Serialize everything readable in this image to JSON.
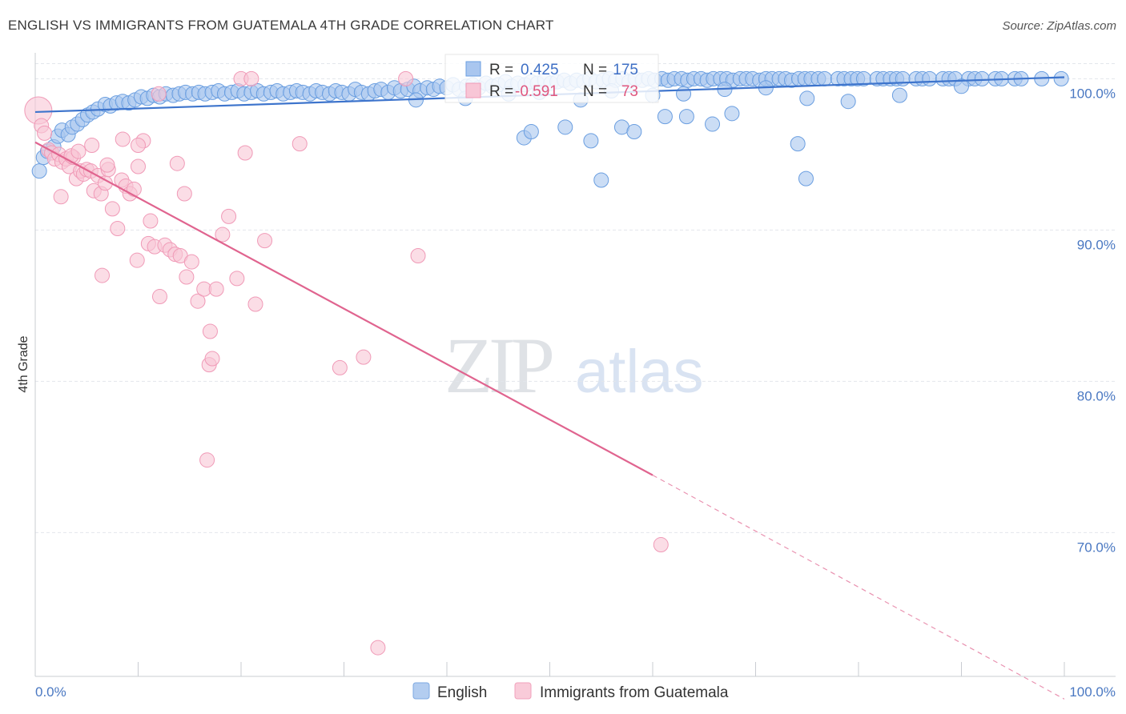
{
  "chart_data": {
    "type": "scatter",
    "title": "ENGLISH VS IMMIGRANTS FROM GUATEMALA 4TH GRADE CORRELATION CHART",
    "source": "Source: ZipAtlas.com",
    "ylabel": "4th Grade",
    "xlim": [
      0,
      100
    ],
    "ylim": [
      60.5,
      101.5
    ],
    "y_ticks": [
      {
        "value": 100,
        "label": "100.0%"
      },
      {
        "value": 90,
        "label": "90.0%"
      },
      {
        "value": 80,
        "label": "80.0%"
      },
      {
        "value": 70,
        "label": "70.0%"
      }
    ],
    "x_tick_labels": {
      "left": "0.0%",
      "right": "100.0%"
    },
    "watermark": {
      "zip": "ZIP",
      "atlas": "atlas"
    },
    "colors": {
      "english": "#6a9ee0",
      "english_line": "#3d74cc",
      "guatemala": "#f4a6bf",
      "guatemala_line": "#e0648f",
      "grid": "#e3e6ec",
      "tick_text": "#4a78c2"
    },
    "series": [
      {
        "name": "English",
        "r_label": "R =",
        "r_value": "0.425",
        "n_label": "N =",
        "n_value": "175",
        "trend": {
          "x0": 0,
          "y0": 97.8,
          "x1": 100,
          "y1": 100.1
        },
        "points": [
          [
            0.4,
            93.9
          ],
          [
            0.8,
            94.8
          ],
          [
            1.2,
            95.2
          ],
          [
            1.8,
            95.5
          ],
          [
            2.2,
            96.2
          ],
          [
            2.6,
            96.6
          ],
          [
            3.2,
            96.3
          ],
          [
            3.6,
            96.8
          ],
          [
            4.1,
            97.0
          ],
          [
            4.6,
            97.3
          ],
          [
            5.1,
            97.6
          ],
          [
            5.6,
            97.8
          ],
          [
            6.1,
            98.0
          ],
          [
            6.8,
            98.3
          ],
          [
            7.3,
            98.2
          ],
          [
            7.9,
            98.4
          ],
          [
            8.5,
            98.5
          ],
          [
            9.1,
            98.4
          ],
          [
            9.7,
            98.6
          ],
          [
            10.3,
            98.8
          ],
          [
            10.9,
            98.7
          ],
          [
            11.5,
            98.9
          ],
          [
            12.1,
            98.8
          ],
          [
            12.7,
            99.0
          ],
          [
            13.4,
            98.9
          ],
          [
            14.0,
            99.0
          ],
          [
            14.6,
            99.1
          ],
          [
            15.3,
            99.0
          ],
          [
            15.9,
            99.1
          ],
          [
            16.5,
            99.0
          ],
          [
            17.2,
            99.1
          ],
          [
            17.8,
            99.2
          ],
          [
            18.4,
            99.0
          ],
          [
            19.1,
            99.1
          ],
          [
            19.7,
            99.2
          ],
          [
            20.3,
            99.0
          ],
          [
            21.0,
            99.1
          ],
          [
            21.6,
            99.2
          ],
          [
            22.2,
            99.0
          ],
          [
            22.9,
            99.1
          ],
          [
            23.5,
            99.2
          ],
          [
            24.1,
            99.0
          ],
          [
            24.8,
            99.1
          ],
          [
            25.4,
            99.2
          ],
          [
            26.0,
            99.1
          ],
          [
            26.7,
            99.0
          ],
          [
            27.3,
            99.2
          ],
          [
            27.9,
            99.1
          ],
          [
            28.6,
            99.0
          ],
          [
            29.2,
            99.2
          ],
          [
            29.8,
            99.1
          ],
          [
            30.5,
            99.0
          ],
          [
            31.1,
            99.3
          ],
          [
            31.7,
            99.1
          ],
          [
            32.4,
            99.0
          ],
          [
            33.0,
            99.2
          ],
          [
            33.6,
            99.3
          ],
          [
            34.3,
            99.1
          ],
          [
            34.9,
            99.4
          ],
          [
            35.5,
            99.2
          ],
          [
            36.2,
            99.3
          ],
          [
            36.8,
            99.5
          ],
          [
            37.4,
            99.2
          ],
          [
            38.1,
            99.4
          ],
          [
            38.7,
            99.3
          ],
          [
            39.3,
            99.5
          ],
          [
            40.0,
            99.4
          ],
          [
            40.6,
            99.6
          ],
          [
            41.2,
            99.3
          ],
          [
            41.9,
            99.5
          ],
          [
            42.5,
            99.6
          ],
          [
            43.1,
            99.4
          ],
          [
            43.8,
            99.7
          ],
          [
            44.4,
            99.5
          ],
          [
            45.0,
            99.6
          ],
          [
            45.7,
            99.8
          ],
          [
            46.3,
            99.5
          ],
          [
            46.9,
            99.7
          ],
          [
            47.6,
            99.6
          ],
          [
            48.2,
            99.8
          ],
          [
            48.8,
            99.7
          ],
          [
            49.5,
            99.9
          ],
          [
            50.1,
            99.7
          ],
          [
            50.7,
            99.8
          ],
          [
            51.4,
            99.9
          ],
          [
            52.0,
            99.7
          ],
          [
            52.6,
            99.9
          ],
          [
            53.3,
            99.8
          ],
          [
            53.9,
            100.0
          ],
          [
            54.5,
            99.8
          ],
          [
            55.2,
            99.9
          ],
          [
            55.8,
            100.0
          ],
          [
            56.4,
            99.9
          ],
          [
            57.1,
            100.0
          ],
          [
            57.7,
            99.8
          ],
          [
            58.3,
            100.0
          ],
          [
            59.0,
            99.9
          ],
          [
            59.6,
            100.0
          ],
          [
            60.2,
            99.9
          ],
          [
            60.9,
            100.0
          ],
          [
            61.5,
            99.9
          ],
          [
            62.1,
            100.0
          ],
          [
            62.8,
            100.0
          ],
          [
            63.4,
            99.9
          ],
          [
            64.0,
            100.0
          ],
          [
            64.7,
            100.0
          ],
          [
            65.3,
            99.9
          ],
          [
            65.9,
            100.0
          ],
          [
            66.6,
            100.0
          ],
          [
            67.2,
            100.0
          ],
          [
            67.8,
            99.9
          ],
          [
            68.5,
            100.0
          ],
          [
            69.1,
            100.0
          ],
          [
            69.7,
            100.0
          ],
          [
            70.4,
            99.9
          ],
          [
            71.0,
            100.0
          ],
          [
            71.6,
            100.0
          ],
          [
            72.3,
            100.0
          ],
          [
            72.9,
            100.0
          ],
          [
            73.5,
            99.9
          ],
          [
            74.2,
            100.0
          ],
          [
            74.8,
            100.0
          ],
          [
            75.4,
            100.0
          ],
          [
            76.1,
            100.0
          ],
          [
            76.7,
            100.0
          ],
          [
            78.0,
            100.0
          ],
          [
            78.6,
            100.0
          ],
          [
            79.3,
            100.0
          ],
          [
            79.9,
            100.0
          ],
          [
            80.5,
            100.0
          ],
          [
            81.8,
            100.0
          ],
          [
            82.4,
            100.0
          ],
          [
            83.1,
            100.0
          ],
          [
            83.7,
            100.0
          ],
          [
            84.3,
            100.0
          ],
          [
            85.6,
            100.0
          ],
          [
            86.2,
            100.0
          ],
          [
            86.9,
            100.0
          ],
          [
            88.2,
            100.0
          ],
          [
            88.8,
            100.0
          ],
          [
            89.4,
            100.0
          ],
          [
            90.7,
            100.0
          ],
          [
            91.3,
            100.0
          ],
          [
            92.0,
            100.0
          ],
          [
            93.3,
            100.0
          ],
          [
            93.9,
            100.0
          ],
          [
            95.2,
            100.0
          ],
          [
            95.8,
            100.0
          ],
          [
            97.8,
            100.0
          ],
          [
            99.7,
            100.0
          ],
          [
            46.0,
            99.0
          ],
          [
            49.0,
            99.1
          ],
          [
            53.0,
            98.6
          ],
          [
            56.0,
            99.2
          ],
          [
            60.0,
            98.9
          ],
          [
            63.0,
            99.0
          ],
          [
            67.0,
            99.3
          ],
          [
            71.0,
            99.4
          ],
          [
            75.0,
            98.7
          ],
          [
            79.0,
            98.5
          ],
          [
            84.0,
            98.9
          ],
          [
            90.0,
            99.5
          ],
          [
            47.5,
            96.1
          ],
          [
            48.2,
            96.5
          ],
          [
            51.5,
            96.8
          ],
          [
            54.0,
            95.9
          ],
          [
            57.0,
            96.8
          ],
          [
            58.2,
            96.5
          ],
          [
            61.2,
            97.5
          ],
          [
            63.3,
            97.5
          ],
          [
            65.8,
            97.0
          ],
          [
            67.7,
            97.7
          ],
          [
            55.0,
            93.3
          ],
          [
            74.1,
            95.7
          ],
          [
            74.9,
            93.4
          ],
          [
            37.0,
            98.6
          ],
          [
            41.8,
            98.7
          ]
        ]
      },
      {
        "name": "Immigrants from Guatemala",
        "r_label": "R =",
        "r_value": "-0.591",
        "n_label": "N =",
        "n_value": "73",
        "trend": {
          "x0": 0,
          "y0": 95.8,
          "x1": 60,
          "y1": 73.8
        },
        "trend_dashed": {
          "x0": 60,
          "y0": 73.8,
          "x1": 100,
          "y1": 59.0
        },
        "points": [
          [
            0.3,
            97.9
          ],
          [
            0.6,
            96.9
          ],
          [
            0.9,
            96.4
          ],
          [
            1.3,
            95.3
          ],
          [
            1.6,
            95.1
          ],
          [
            1.9,
            94.7
          ],
          [
            2.3,
            95.0
          ],
          [
            2.6,
            94.5
          ],
          [
            3.0,
            94.7
          ],
          [
            3.3,
            94.2
          ],
          [
            3.7,
            94.8
          ],
          [
            4.0,
            93.4
          ],
          [
            4.4,
            93.9
          ],
          [
            4.7,
            93.7
          ],
          [
            5.0,
            94.0
          ],
          [
            5.4,
            93.9
          ],
          [
            5.7,
            92.6
          ],
          [
            6.1,
            93.6
          ],
          [
            6.4,
            92.4
          ],
          [
            6.8,
            93.1
          ],
          [
            7.1,
            94.0
          ],
          [
            7.5,
            91.4
          ],
          [
            8.0,
            90.1
          ],
          [
            8.4,
            93.3
          ],
          [
            8.8,
            92.9
          ],
          [
            9.2,
            92.4
          ],
          [
            9.6,
            92.7
          ],
          [
            10.0,
            94.2
          ],
          [
            10.5,
            95.9
          ],
          [
            11.0,
            89.1
          ],
          [
            11.6,
            88.9
          ],
          [
            12.1,
            85.6
          ],
          [
            12.6,
            89.0
          ],
          [
            13.1,
            88.7
          ],
          [
            13.6,
            88.4
          ],
          [
            14.1,
            88.3
          ],
          [
            14.7,
            86.9
          ],
          [
            15.2,
            87.9
          ],
          [
            15.8,
            85.3
          ],
          [
            16.4,
            86.1
          ],
          [
            17.0,
            83.3
          ],
          [
            17.6,
            86.1
          ],
          [
            18.2,
            89.7
          ],
          [
            18.8,
            90.9
          ],
          [
            19.6,
            86.8
          ],
          [
            20.4,
            95.1
          ],
          [
            21.4,
            85.1
          ],
          [
            22.3,
            89.3
          ],
          [
            2.5,
            92.2
          ],
          [
            6.5,
            87.0
          ],
          [
            9.9,
            88.0
          ],
          [
            11.2,
            90.6
          ],
          [
            14.5,
            92.4
          ],
          [
            16.9,
            81.1
          ],
          [
            25.7,
            95.7
          ],
          [
            29.6,
            80.9
          ],
          [
            31.9,
            81.6
          ],
          [
            37.2,
            88.3
          ],
          [
            16.7,
            74.8
          ],
          [
            33.3,
            62.4
          ],
          [
            60.8,
            69.2
          ],
          [
            17.2,
            81.5
          ],
          [
            10.0,
            95.6
          ],
          [
            8.5,
            96.0
          ],
          [
            5.5,
            95.6
          ],
          [
            3.5,
            94.9
          ],
          [
            20.0,
            100.0
          ],
          [
            21.0,
            100.0
          ],
          [
            36.0,
            100.0
          ],
          [
            12.0,
            99.0
          ],
          [
            7.0,
            94.3
          ],
          [
            4.2,
            95.2
          ],
          [
            13.8,
            94.4
          ]
        ]
      }
    ]
  }
}
